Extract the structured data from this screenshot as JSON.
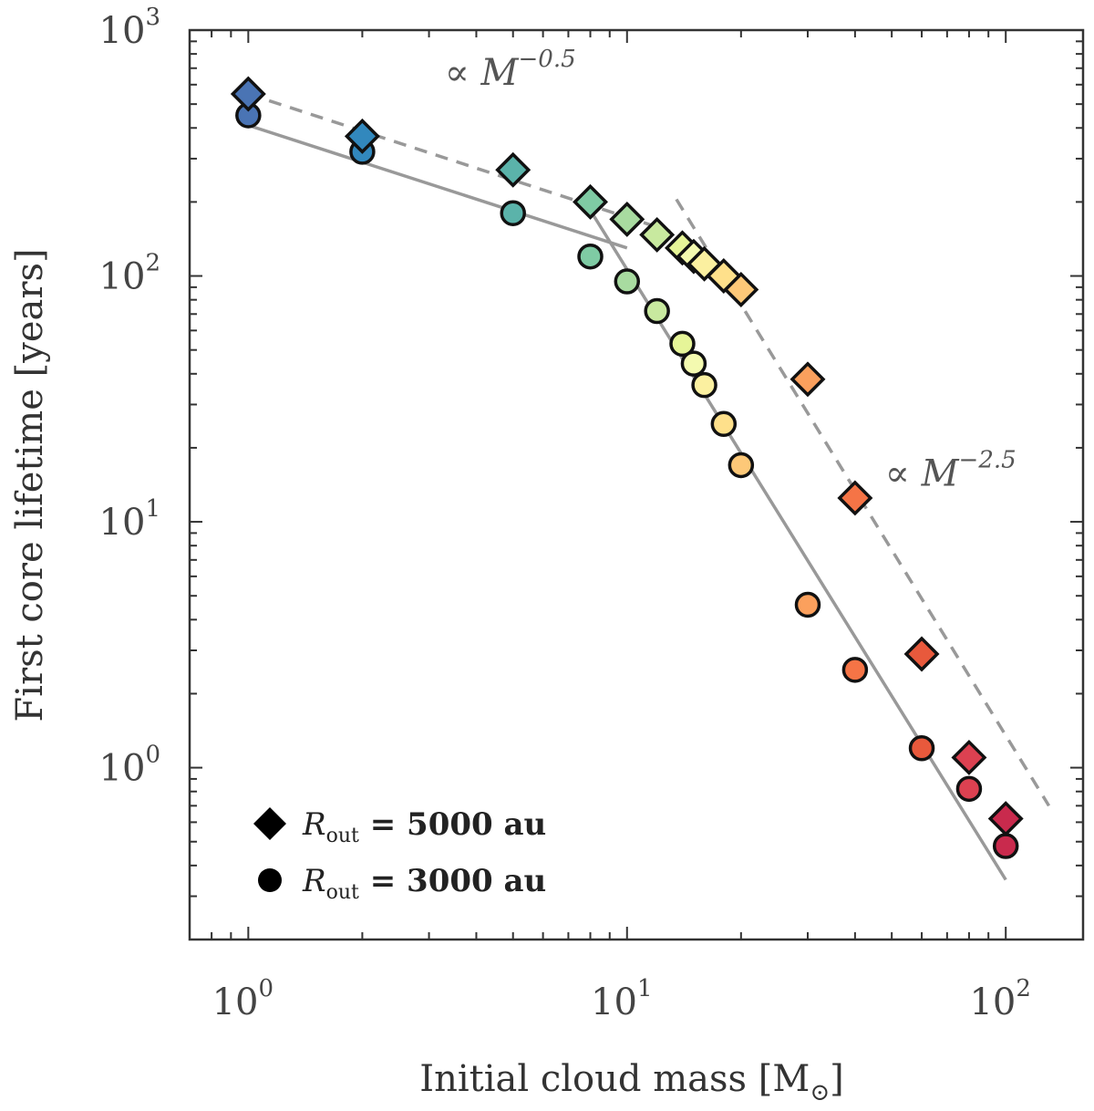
{
  "chart_data": {
    "type": "scatter",
    "title": "",
    "xlabel": "Initial cloud mass [M",
    "xlabel_sub": "⊙",
    "xlabel_end": "]",
    "ylabel": "First core lifetime [years]",
    "xscale": "log",
    "yscale": "log",
    "xlim": [
      0.7,
      160
    ],
    "ylim": [
      0.2,
      1000
    ],
    "x_ticks": [
      {
        "base": "10",
        "exp": "0",
        "value": 1
      },
      {
        "base": "10",
        "exp": "1",
        "value": 10
      },
      {
        "base": "10",
        "exp": "2",
        "value": 100
      }
    ],
    "y_ticks": [
      {
        "base": "10",
        "exp": "0",
        "value": 1
      },
      {
        "base": "10",
        "exp": "1",
        "value": 10
      },
      {
        "base": "10",
        "exp": "2",
        "value": 100
      },
      {
        "base": "10",
        "exp": "3",
        "value": 1000
      }
    ],
    "series": [
      {
        "name": "R_out = 5000 au",
        "marker": "diamond",
        "x": [
          1,
          2,
          5,
          8,
          10,
          12,
          14,
          15,
          16,
          18,
          20,
          30,
          40,
          60,
          80,
          100
        ],
        "y": [
          550,
          370,
          270,
          200,
          170,
          147,
          130,
          120,
          112,
          100,
          88,
          38,
          12.5,
          2.9,
          1.1,
          0.62
        ],
        "colors": [
          "#4a74b4",
          "#3288bd",
          "#5bb3aa",
          "#7fcba4",
          "#a8dba0",
          "#c8e99f",
          "#e6f598",
          "#f4fab0",
          "#fbf0a0",
          "#fee08b",
          "#fdc878",
          "#fba05d",
          "#f57446",
          "#e8593c",
          "#dc4151",
          "#c92a4d"
        ]
      },
      {
        "name": "R_out = 3000 au",
        "marker": "circle",
        "x": [
          1,
          2,
          5,
          8,
          10,
          12,
          14,
          15,
          16,
          18,
          20,
          30,
          40,
          60,
          80,
          100
        ],
        "y": [
          450,
          320,
          180,
          120,
          95,
          72,
          53,
          44,
          36,
          25,
          17,
          4.6,
          2.5,
          1.2,
          0.82,
          0.48
        ],
        "colors": [
          "#4a74b4",
          "#3288bd",
          "#5bb3aa",
          "#7fcba4",
          "#a8dba0",
          "#c8e99f",
          "#e6f598",
          "#f4fab0",
          "#fbf0a0",
          "#fee08b",
          "#fdc878",
          "#fba05d",
          "#f57446",
          "#e8593c",
          "#dc4151",
          "#c92a4d"
        ]
      }
    ],
    "fit_lines": [
      {
        "name": "fit-5000-shallow",
        "style": "dashed",
        "x": [
          1,
          13
        ],
        "y": [
          550,
          152
        ]
      },
      {
        "name": "fit-5000-steep",
        "style": "dashed",
        "x": [
          13.5,
          130
        ],
        "y": [
          205,
          0.7
        ]
      },
      {
        "name": "fit-3000-shallow",
        "style": "solid",
        "x": [
          1,
          10
        ],
        "y": [
          410,
          130
        ]
      },
      {
        "name": "fit-3000-steep",
        "style": "solid",
        "x": [
          8,
          100
        ],
        "y": [
          185,
          0.35
        ]
      }
    ],
    "annotations": [
      {
        "name": "annot-shallow",
        "prefix": "∝ ",
        "var": "M",
        "exp": "−0.5",
        "x": 3.3,
        "y": 600
      },
      {
        "name": "annot-steep",
        "prefix": "∝ ",
        "var": "M",
        "exp": "−2.5",
        "x": 48,
        "y": 14
      }
    ],
    "legend": {
      "position": "bottom-left",
      "entries": [
        {
          "marker": "diamond",
          "sym": "R",
          "sub": "out",
          "text": " = 5000 au"
        },
        {
          "marker": "circle",
          "sym": "R",
          "sub": "out",
          "text": " = 3000 au"
        }
      ]
    },
    "line_color": "#999999"
  }
}
